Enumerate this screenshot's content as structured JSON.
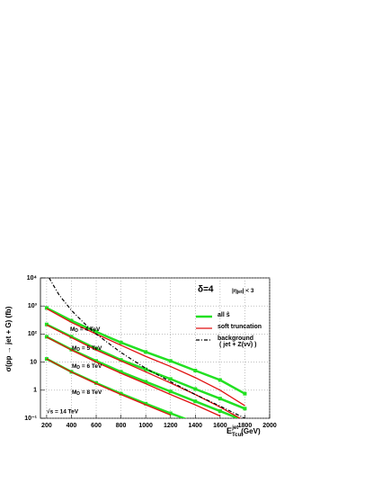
{
  "chart_data": {
    "type": "line",
    "y_label": "σ(pp → jet + G)  (fb)",
    "x_label": {
      "symbol": "E",
      "subscript": "Tcut",
      "superscript": "jet",
      "unit": "(GeV)"
    },
    "xlim": [
      150,
      2000
    ],
    "xticks": [
      200,
      400,
      600,
      800,
      1000,
      1200,
      1400,
      1600,
      1800,
      2000
    ],
    "ylim": [
      0.1,
      10000
    ],
    "log_y": true,
    "grid": true,
    "yticks": [
      {
        "value": 0.1,
        "label": "10⁻¹"
      },
      1,
      10,
      {
        "value": 100,
        "label": "10²"
      },
      {
        "value": 1000,
        "label": "10³"
      },
      {
        "value": 10000,
        "label": "10⁴"
      }
    ],
    "x": [
      200,
      400,
      600,
      800,
      1000,
      1200,
      1400,
      1600,
      1800
    ],
    "series": [
      {
        "name": "all ŝ",
        "color": "#22e022",
        "width": 2.5,
        "markers": true,
        "lines": [
          [
            850,
            300,
            120,
            50,
            23,
            11,
            5,
            2.3,
            0.75
          ],
          [
            220,
            80,
            30,
            12,
            5.5,
            2.5,
            1.1,
            0.5,
            0.22
          ],
          [
            80,
            28,
            11,
            4.5,
            2,
            0.9,
            0.4,
            0.18,
            0.08
          ],
          [
            13,
            4.5,
            1.8,
            0.75,
            0.33,
            0.15,
            0.07,
            null,
            null
          ]
        ]
      },
      {
        "name": "soft truncation",
        "color": "#e01010",
        "width": 1.3,
        "markers": false,
        "lines": [
          [
            800,
            260,
            100,
            40,
            16,
            7,
            2.8,
            1.0,
            0.28
          ],
          [
            210,
            75,
            27,
            11,
            4.5,
            1.8,
            0.7,
            0.25,
            0.08
          ],
          [
            78,
            27,
            10,
            4,
            1.7,
            0.7,
            0.3,
            0.12,
            null
          ],
          [
            13,
            4.4,
            1.7,
            0.7,
            0.3,
            0.13,
            null,
            null,
            null
          ]
        ]
      },
      {
        "name": "background",
        "note": "( jet + Z(νν̄) )",
        "color": "#000000",
        "width": 1.2,
        "dash": true,
        "x": [
          220,
          300,
          400,
          500,
          600,
          800,
          1000,
          1200,
          1400,
          1600,
          1800,
          1900
        ],
        "values": [
          10000,
          2500,
          700,
          250,
          100,
          22,
          6,
          2,
          0.7,
          0.27,
          0.1,
          0.065
        ]
      }
    ],
    "curve_labels": [
      {
        "symbol": "M",
        "subscript": "D",
        "text": " = 4 TeV"
      },
      {
        "symbol": "M",
        "subscript": "D",
        "text": " = 5 TeV"
      },
      {
        "symbol": "M",
        "subscript": "D",
        "text": " = 6 TeV"
      },
      {
        "symbol": "M",
        "subscript": "D",
        "text": " = 8 TeV"
      }
    ],
    "annotations": [
      "δ=4",
      "|η",
      "jet",
      "| < 3",
      "√s = 14 TeV"
    ]
  }
}
